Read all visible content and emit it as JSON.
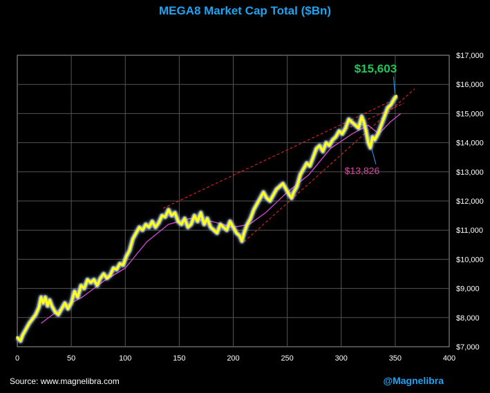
{
  "colors": {
    "title": "#1fa3f0",
    "handle": "#1fa3f0",
    "line": "#ffff1a",
    "glow": "#b8d4ff",
    "ma": "#c844c8",
    "trend": "#d42020",
    "high_label": "#22c855",
    "low_label": "#d24a9c",
    "grid": "#555555",
    "text": "#ffffff"
  },
  "footer": {
    "source": "Source: www.magnelibra.com",
    "handle": "@Magnelibra"
  },
  "chart_data": {
    "type": "line",
    "title": "MEGA8 Market Cap Total ($Bn)",
    "xlabel": "",
    "ylabel": "",
    "xlim": [
      0,
      400
    ],
    "ylim": [
      7000,
      17000
    ],
    "x_ticks": [
      0,
      50,
      100,
      150,
      200,
      250,
      300,
      350,
      400
    ],
    "y_ticks": [
      7000,
      8000,
      9000,
      10000,
      11000,
      12000,
      13000,
      14000,
      15000,
      16000,
      17000
    ],
    "y_tick_labels": [
      "$7,000",
      "$8,000",
      "$9,000",
      "$10,000",
      "$11,000",
      "$12,000",
      "$13,000",
      "$14,000",
      "$15,000",
      "$16,000",
      "$17,000"
    ],
    "grid": true,
    "series": [
      {
        "style": "line",
        "points": [
          [
            0,
            7320
          ],
          [
            3,
            7200
          ],
          [
            5,
            7400
          ],
          [
            8,
            7600
          ],
          [
            11,
            7800
          ],
          [
            14,
            7950
          ],
          [
            17,
            8100
          ],
          [
            20,
            8350
          ],
          [
            22,
            8700
          ],
          [
            24,
            8500
          ],
          [
            26,
            8700
          ],
          [
            28,
            8400
          ],
          [
            30,
            8600
          ],
          [
            32,
            8400
          ],
          [
            35,
            8200
          ],
          [
            38,
            8100
          ],
          [
            41,
            8300
          ],
          [
            44,
            8500
          ],
          [
            47,
            8300
          ],
          [
            50,
            8500
          ],
          [
            53,
            8900
          ],
          [
            56,
            8700
          ],
          [
            59,
            9100
          ],
          [
            62,
            9000
          ],
          [
            65,
            9300
          ],
          [
            68,
            9200
          ],
          [
            71,
            9300
          ],
          [
            74,
            9100
          ],
          [
            77,
            9350
          ],
          [
            80,
            9500
          ],
          [
            83,
            9350
          ],
          [
            86,
            9450
          ],
          [
            89,
            9700
          ],
          [
            92,
            9650
          ],
          [
            95,
            9850
          ],
          [
            98,
            9800
          ],
          [
            101,
            10100
          ],
          [
            104,
            10300
          ],
          [
            107,
            10700
          ],
          [
            110,
            10900
          ],
          [
            113,
            11100
          ],
          [
            116,
            11000
          ],
          [
            119,
            11200
          ],
          [
            122,
            11100
          ],
          [
            125,
            11300
          ],
          [
            128,
            11100
          ],
          [
            131,
            11250
          ],
          [
            134,
            11500
          ],
          [
            137,
            11450
          ],
          [
            140,
            11700
          ],
          [
            143,
            11500
          ],
          [
            146,
            11600
          ],
          [
            149,
            11300
          ],
          [
            152,
            11200
          ],
          [
            155,
            11400
          ],
          [
            158,
            11100
          ],
          [
            161,
            11200
          ],
          [
            164,
            11500
          ],
          [
            167,
            11300
          ],
          [
            170,
            11600
          ],
          [
            173,
            11200
          ],
          [
            176,
            11400
          ],
          [
            179,
            11100
          ],
          [
            182,
            11000
          ],
          [
            185,
            10900
          ],
          [
            188,
            11200
          ],
          [
            191,
            11100
          ],
          [
            194,
            11000
          ],
          [
            197,
            11300
          ],
          [
            200,
            11100
          ],
          [
            203,
            10900
          ],
          [
            206,
            10800
          ],
          [
            208,
            10620
          ],
          [
            210,
            10900
          ],
          [
            213,
            11200
          ],
          [
            216,
            11400
          ],
          [
            219,
            11700
          ],
          [
            222,
            11900
          ],
          [
            225,
            12100
          ],
          [
            228,
            12300
          ],
          [
            231,
            12100
          ],
          [
            234,
            12000
          ],
          [
            237,
            12200
          ],
          [
            240,
            12400
          ],
          [
            243,
            12500
          ],
          [
            246,
            12600
          ],
          [
            249,
            12400
          ],
          [
            252,
            12200
          ],
          [
            254,
            12100
          ],
          [
            256,
            12300
          ],
          [
            259,
            12500
          ],
          [
            262,
            12900
          ],
          [
            265,
            13100
          ],
          [
            268,
            13300
          ],
          [
            271,
            13200
          ],
          [
            274,
            13500
          ],
          [
            277,
            13800
          ],
          [
            280,
            13900
          ],
          [
            283,
            13700
          ],
          [
            286,
            14000
          ],
          [
            289,
            13900
          ],
          [
            292,
            14100
          ],
          [
            295,
            14200
          ],
          [
            298,
            14400
          ],
          [
            301,
            14300
          ],
          [
            304,
            14500
          ],
          [
            307,
            14800
          ],
          [
            310,
            14700
          ],
          [
            313,
            14600
          ],
          [
            316,
            14500
          ],
          [
            319,
            14900
          ],
          [
            321,
            14700
          ],
          [
            323,
            14400
          ],
          [
            325,
            14000
          ],
          [
            327,
            13826
          ],
          [
            329,
            14200
          ],
          [
            331,
            14100
          ],
          [
            334,
            14300
          ],
          [
            337,
            14600
          ],
          [
            340,
            14900
          ],
          [
            343,
            15200
          ],
          [
            346,
            15300
          ],
          [
            349,
            15500
          ],
          [
            351,
            15603
          ]
        ]
      },
      {
        "style": "moving-average",
        "points": [
          [
            22,
            7800
          ],
          [
            40,
            8300
          ],
          [
            60,
            8700
          ],
          [
            80,
            9250
          ],
          [
            100,
            9700
          ],
          [
            120,
            10600
          ],
          [
            140,
            11200
          ],
          [
            160,
            11400
          ],
          [
            180,
            11300
          ],
          [
            200,
            11100
          ],
          [
            215,
            11200
          ],
          [
            230,
            11600
          ],
          [
            250,
            12300
          ],
          [
            270,
            12900
          ],
          [
            290,
            13800
          ],
          [
            310,
            14300
          ],
          [
            325,
            14600
          ],
          [
            335,
            14300
          ],
          [
            345,
            14700
          ],
          [
            355,
            15000
          ]
        ]
      },
      {
        "style": "trendline",
        "points": [
          [
            135,
            11750
          ],
          [
            352,
            15530
          ]
        ]
      },
      {
        "style": "trendline",
        "points": [
          [
            210,
            10600
          ],
          [
            368,
            15850
          ]
        ]
      },
      {
        "style": "trendline",
        "points": [
          [
            300,
            14400
          ],
          [
            358,
            15350
          ]
        ]
      }
    ],
    "annotations": [
      {
        "text": "$15,603",
        "x": 351,
        "y": 15603,
        "role": "high"
      },
      {
        "text": "$13,826",
        "x": 327,
        "y": 13826,
        "role": "low"
      }
    ]
  }
}
